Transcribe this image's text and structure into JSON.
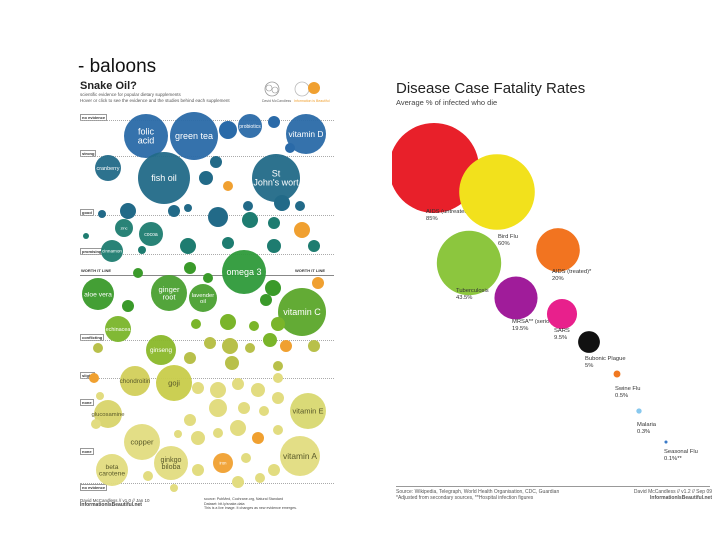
{
  "slide": {
    "title": "- baloons"
  },
  "chart_data": [
    {
      "type": "bubble",
      "title": "Snake Oil?",
      "subtitle": "scientific evidence for popular dietary supplements",
      "subtitle2": "Hover or click to see the evidence and the studies behind each supplement",
      "logo_text_1": "David McCandless",
      "logo_text_2": "Information is Beautiful",
      "tiers": [
        "strong",
        "good",
        "promising",
        "worth it line",
        "conflicting",
        "slight",
        "none",
        "no evidence"
      ],
      "worth_it_label": "WORTH IT LINE",
      "bubbles": [
        {
          "label": "folic acid",
          "value": 22,
          "color": "#2a6aa8"
        },
        {
          "label": "green tea",
          "value": 24,
          "color": "#2a6aa8"
        },
        {
          "label": "vitamin D",
          "value": 20,
          "color": "#2a6aa8"
        },
        {
          "label": "probiotics",
          "value": 12,
          "color": "#2a6aa8"
        },
        {
          "label": "fish oil",
          "value": 26,
          "color": "#226a88"
        },
        {
          "label": "St John's wort",
          "value": 24,
          "color": "#226a88"
        },
        {
          "label": "cranberry",
          "value": 13,
          "color": "#226a88"
        },
        {
          "label": "cocoa",
          "value": 12,
          "color": "#1e7c70"
        },
        {
          "label": "cinnamon",
          "value": 11,
          "color": "#1e7c70"
        },
        {
          "label": "zinc",
          "value": 9,
          "color": "#1e7c70"
        },
        {
          "label": "omega 3",
          "value": 22,
          "color": "#2e9a3a"
        },
        {
          "label": "ginger root",
          "value": 18,
          "color": "#4aa030"
        },
        {
          "label": "aloe vera",
          "value": 16,
          "color": "#3a9a2a"
        },
        {
          "label": "lavender oil",
          "value": 14,
          "color": "#4aa030"
        },
        {
          "label": "vitamin C",
          "value": 24,
          "color": "#5ba62a"
        },
        {
          "label": "echinacea",
          "value": 13,
          "color": "#7ab52a"
        },
        {
          "label": "ginseng",
          "value": 15,
          "color": "#8ab82a"
        },
        {
          "label": "goji",
          "value": 18,
          "color": "#c8cc4a"
        },
        {
          "label": "chondroitin",
          "value": 15,
          "color": "#d2cf5a"
        },
        {
          "label": "glucosamine",
          "value": 14,
          "color": "#d8d46a"
        },
        {
          "label": "copper",
          "value": 18,
          "color": "#e2dc80"
        },
        {
          "label": "beta carotene",
          "value": 16,
          "color": "#e2dc80"
        },
        {
          "label": "ginkgo biloba",
          "value": 17,
          "color": "#e2dc80"
        },
        {
          "label": "vitamin E",
          "value": 18,
          "color": "#d8d870"
        },
        {
          "label": "vitamin A",
          "value": 20,
          "color": "#e2dc80"
        },
        {
          "label": "iron",
          "value": 10,
          "color": "#f0a030"
        }
      ],
      "footer_left": [
        "David McCandless // v1.0 // Jan 10",
        "InformationIsBeautiful.net"
      ],
      "footer_right": [
        "source: PubMed, Cochrane.org, Natural Standard",
        "Dataset: bit.ly/snake-data",
        "This is a live image. It changes as new evidence emerges."
      ]
    },
    {
      "type": "bubble",
      "title": "Disease Case Fatality Rates",
      "subtitle": "Average % of infected who die",
      "series": [
        {
          "name": "AIDS (untreated)",
          "value": 85,
          "label": "85%",
          "color": "#e8202a"
        },
        {
          "name": "Bird Flu",
          "value": 60,
          "label": "60%",
          "color": "#f2e11c"
        },
        {
          "name": "AIDS (treated)*",
          "value": 20,
          "label": "20%",
          "color": "#f27420"
        },
        {
          "name": "Tuberculosis",
          "value": 43.5,
          "label": "43.5%",
          "color": "#8cc63e"
        },
        {
          "name": "MRSA** (serious)",
          "value": 19.5,
          "label": "19.5%",
          "color": "#a01c9a"
        },
        {
          "name": "SARS",
          "value": 9.5,
          "label": "9.5%",
          "color": "#e8208c"
        },
        {
          "name": "Bubonic Plague",
          "value": 5,
          "label": "5%",
          "color": "#111111"
        },
        {
          "name": "Swine Flu",
          "value": 0.5,
          "label": "0.5%",
          "color": "#f07820"
        },
        {
          "name": "Malaria",
          "value": 0.3,
          "label": "0.3%",
          "color": "#88c8ee"
        },
        {
          "name": "Seasonal Flu",
          "value": 0.1,
          "label": "0.1%**",
          "color": "#3a7ac8"
        }
      ],
      "footer_left": [
        "Source: Wikipedia, Telegraph, World Health Organisation, CDC, Guardian",
        "*Adjusted from secondary sources, **Hospital infection figures"
      ],
      "footer_right": [
        "David McCandless // v1.2 // Sep 09",
        "InformationIsBeautiful.net"
      ]
    }
  ]
}
